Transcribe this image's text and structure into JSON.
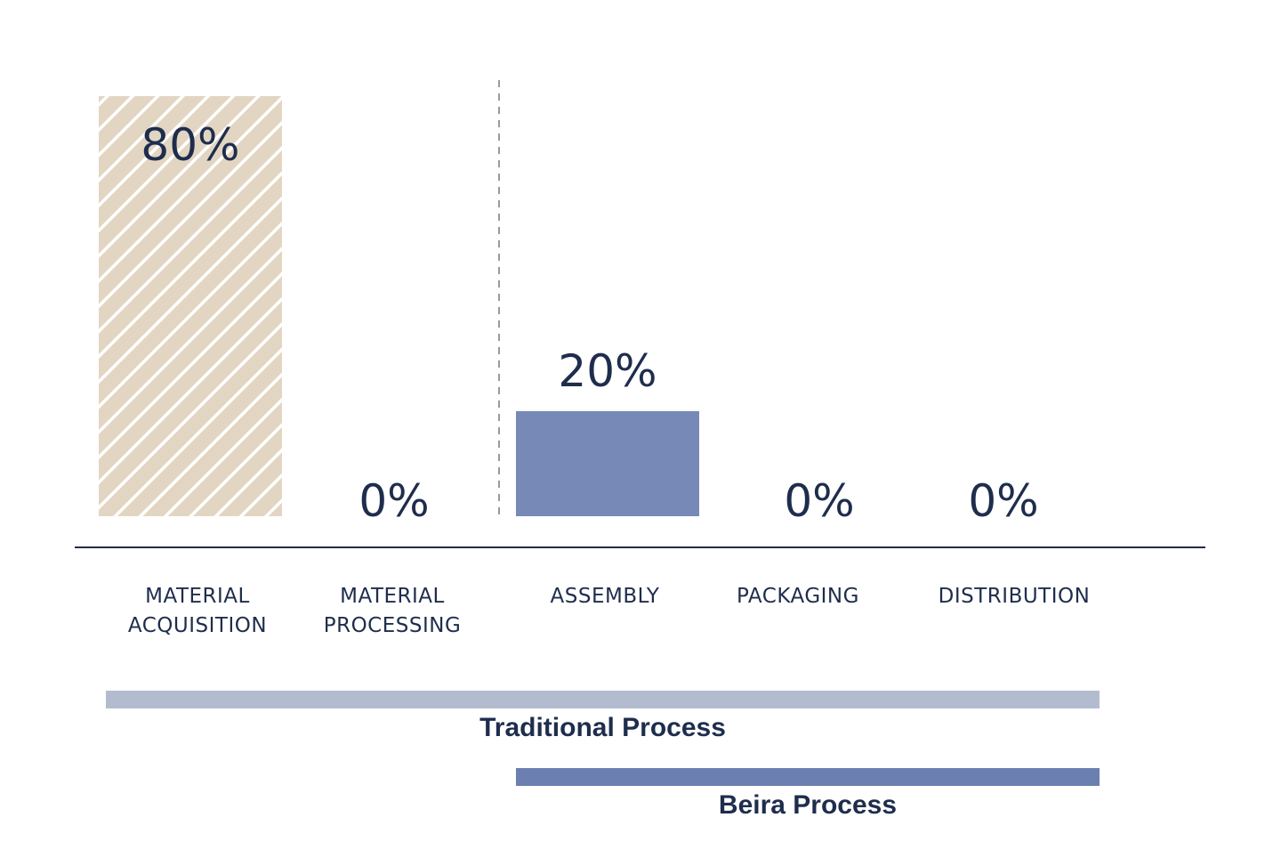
{
  "chart_data": {
    "type": "bar",
    "categories": [
      [
        "MATERIAL",
        "ACQUISITION"
      ],
      [
        "MATERIAL",
        "PROCESSING"
      ],
      [
        "ASSEMBLY"
      ],
      [
        "PACKAGING"
      ],
      [
        "DISTRIBUTION"
      ]
    ],
    "values": [
      80,
      0,
      20,
      0,
      0
    ],
    "value_labels": [
      "80%",
      "0%",
      "20%",
      "0%",
      "0%"
    ],
    "unit": "%",
    "ylim": [
      0,
      80
    ],
    "grid": false,
    "legend": "none",
    "bar_styles": [
      "hatched",
      "solid",
      "solid",
      "solid",
      "solid"
    ],
    "process_ranges": [
      {
        "label": "Traditional Process",
        "from": "MATERIAL ACQUISITION",
        "to": "DISTRIBUTION"
      },
      {
        "label": "Beira Process",
        "from": "ASSEMBLY",
        "to": "DISTRIBUTION"
      }
    ]
  },
  "colors": {
    "text": "#1f2d4d",
    "hatch_bg": "#e2d6c3",
    "hatch_line": "#ffffff",
    "bar_blue": "#7689b7",
    "traditional_bar": "#b3bccf",
    "beira_bar": "#6b7fb0",
    "axis": "#1f2d4d",
    "divider": "#9a9a9a"
  }
}
